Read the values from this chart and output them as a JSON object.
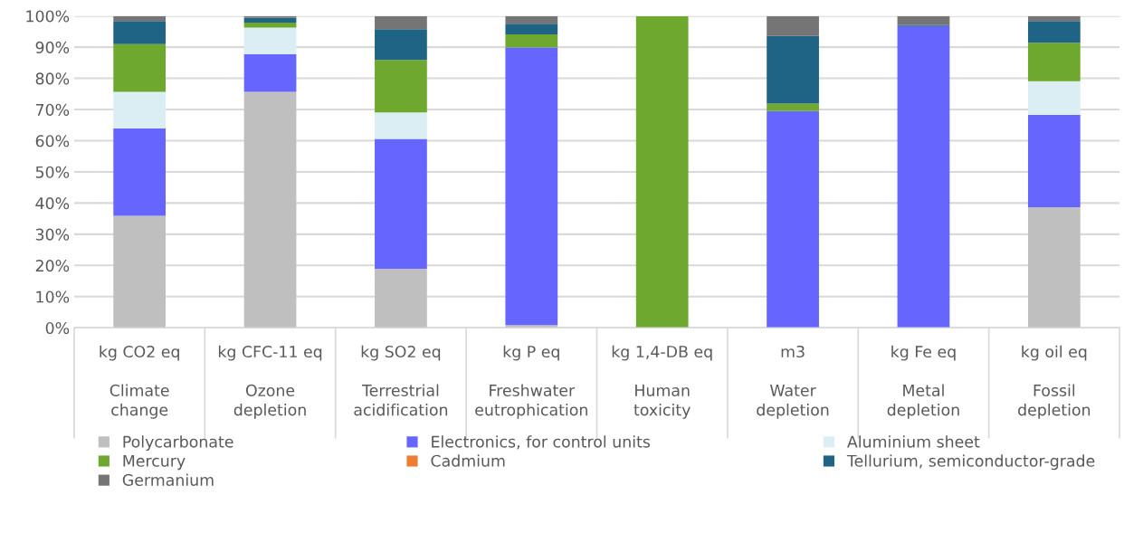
{
  "chart_data": {
    "type": "bar",
    "stacked": true,
    "categories": [
      "kg CO2 eq\n\nClimate\nchange",
      "kg CFC-11 eq\n\nOzone\ndepletion",
      "kg SO2 eq\n\nTerrestrial\nacidification",
      "kg P eq\n\nFreshwater\neutrophication",
      "kg 1,4-DB eq\n\nHuman\ntoxicity",
      "m3\n\nWater\ndepletion",
      "kg Fe eq\n\nMetal\ndepletion",
      "kg oil eq\n\nFossil\ndepletion"
    ],
    "series": [
      {
        "name": "Polycarbonate",
        "color": "#bfbfbf",
        "values": [
          35.9,
          75.7,
          18.9,
          0.9,
          0,
          null,
          0,
          38.7
        ]
      },
      {
        "name": "Electronics, for control units",
        "color": "#6666ff",
        "values": [
          28.0,
          12.1,
          41.7,
          89.0,
          0,
          69.5,
          96.8,
          29.6
        ]
      },
      {
        "name": "Aluminium sheet",
        "color": "#daeef3",
        "values": [
          11.8,
          8.5,
          8.5,
          0,
          0,
          0,
          0,
          10.8
        ]
      },
      {
        "name": "Mercury",
        "color": "#6fa82f",
        "values": [
          15.3,
          1.6,
          16.8,
          4.2,
          100,
          2.4,
          0,
          12.3
        ]
      },
      {
        "name": "Cadmium",
        "color": "#ed7d31",
        "values": [
          0,
          0,
          0,
          0,
          0,
          0,
          0,
          0
        ]
      },
      {
        "name": "Tellurium, semiconductor-grade",
        "color": "#1f6485",
        "values": [
          7.4,
          1.6,
          9.9,
          3.4,
          0,
          21.7,
          0.3,
          7.0
        ]
      },
      {
        "name": "Germanium",
        "color": "#757575",
        "values": [
          1.6,
          0.5,
          4.2,
          2.5,
          0,
          6.4,
          2.9,
          1.6
        ]
      }
    ],
    "ylim": [
      0,
      100
    ],
    "yticks": [
      {
        "value": 0,
        "label": "0%"
      },
      {
        "value": 10,
        "label": "10%"
      },
      {
        "value": 20,
        "label": "20%"
      },
      {
        "value": 30,
        "label": "30%"
      },
      {
        "value": 40,
        "label": "40%"
      },
      {
        "value": 50,
        "label": "50%"
      },
      {
        "value": 60,
        "label": "60%"
      },
      {
        "value": 70,
        "label": "70%"
      },
      {
        "value": 80,
        "label": "80%"
      },
      {
        "value": 90,
        "label": "90%"
      },
      {
        "value": 100,
        "label": "100%"
      }
    ],
    "grid": "y",
    "legend": "bottom"
  }
}
